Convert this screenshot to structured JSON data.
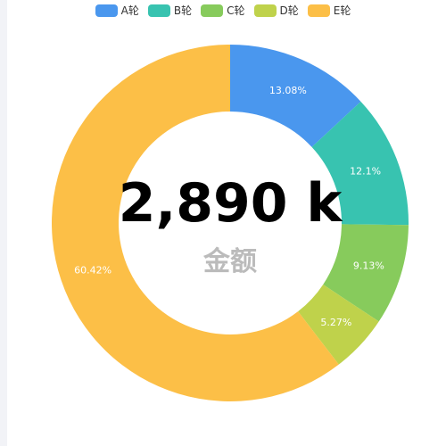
{
  "chart_data": {
    "type": "pie",
    "variant": "donut",
    "categories": [
      "A轮",
      "B轮",
      "C轮",
      "D轮",
      "E轮"
    ],
    "values": [
      13.08,
      12.1,
      9.13,
      5.27,
      60.42
    ],
    "labels": [
      "13.08%",
      "12.1%",
      "9.13%",
      "5.27%",
      "60.42%"
    ],
    "colors": [
      "#4a97ee",
      "#38c3b0",
      "#87cb5c",
      "#bfd24b",
      "#fcbf47"
    ],
    "legend_position": "top-center",
    "center": {
      "value": "2,890 k",
      "caption": "金额"
    }
  }
}
